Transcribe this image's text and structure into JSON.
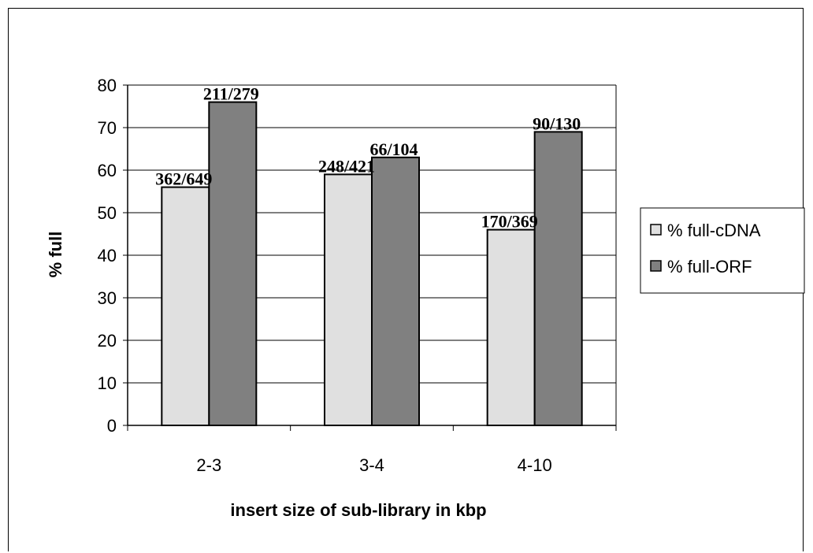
{
  "chart_data": {
    "type": "bar",
    "categories": [
      "2-3",
      "3-4",
      "4-10"
    ],
    "series": [
      {
        "name": "% full-cDNA",
        "values": [
          56,
          59,
          46
        ],
        "labels": [
          "362/649",
          "248/421",
          "170/369"
        ],
        "color": "#e0e0e0"
      },
      {
        "name": "% full-ORF",
        "values": [
          76,
          63,
          69
        ],
        "labels": [
          "211/279",
          "66/104",
          "90/130"
        ],
        "color": "#808080"
      }
    ],
    "title": "",
    "xlabel": "insert size of sub-library in kbp",
    "ylabel": "% full",
    "ylim": [
      0,
      80
    ],
    "yticks": [
      0,
      10,
      20,
      30,
      40,
      50,
      60,
      70,
      80
    ],
    "grid": true,
    "legend_position": "right"
  }
}
